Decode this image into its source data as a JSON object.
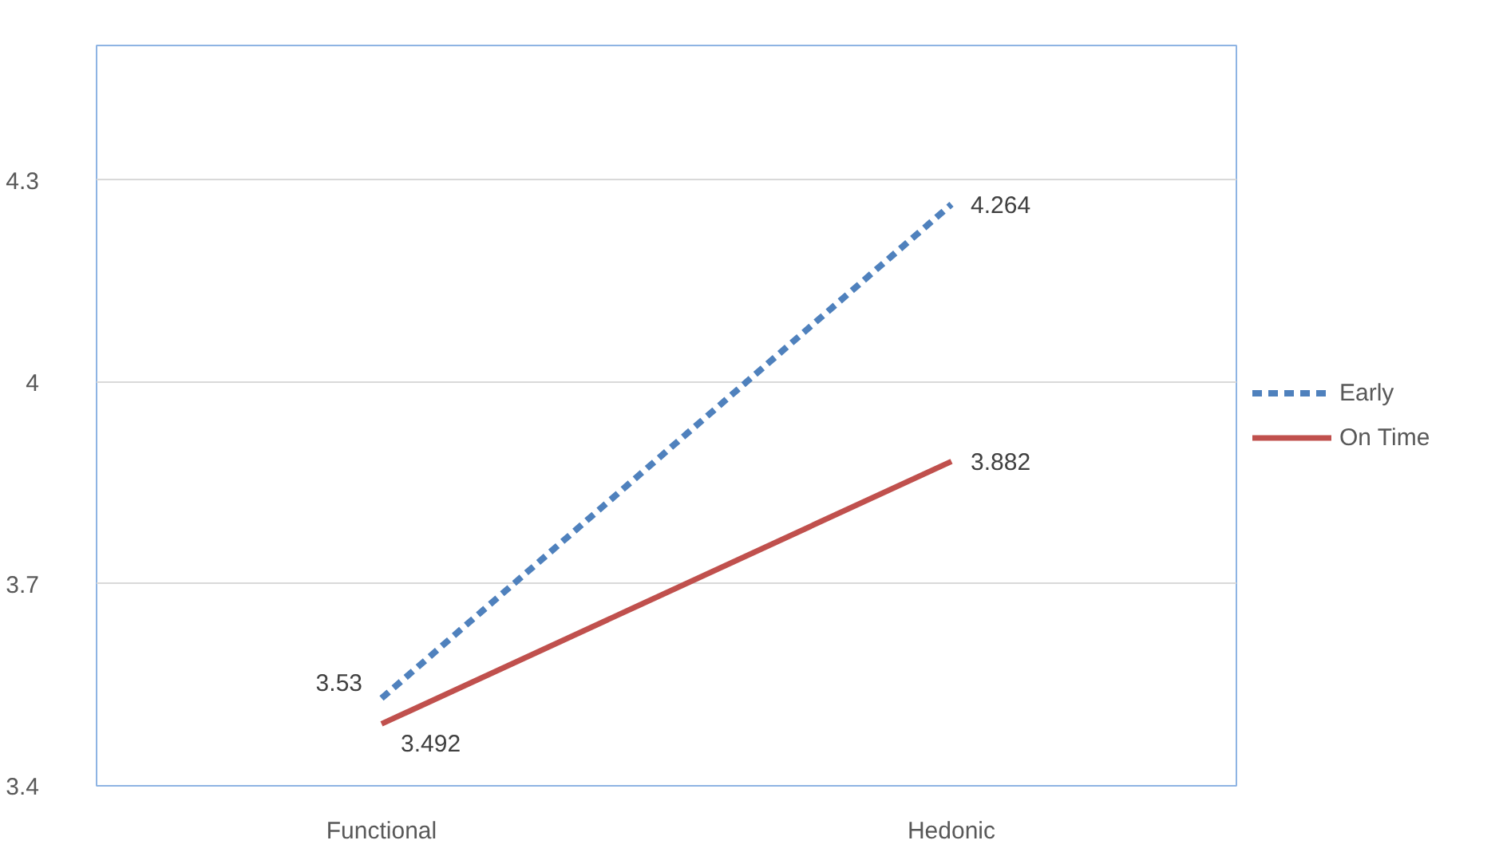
{
  "chart_data": {
    "type": "line",
    "categories": [
      "Functional",
      "Hedonic"
    ],
    "series": [
      {
        "name": "Early",
        "color": "#4f81bd",
        "line_style": "dashed",
        "values": [
          3.53,
          4.264
        ]
      },
      {
        "name": "On Time",
        "color": "#c0504d",
        "line_style": "solid",
        "values": [
          3.492,
          3.882
        ]
      }
    ],
    "ylim": [
      3.4,
      4.5
    ],
    "yticks": [
      3.4,
      3.7,
      4,
      4.3
    ],
    "grid": "y",
    "legend": "right",
    "data_labels": true,
    "marker": "none"
  }
}
